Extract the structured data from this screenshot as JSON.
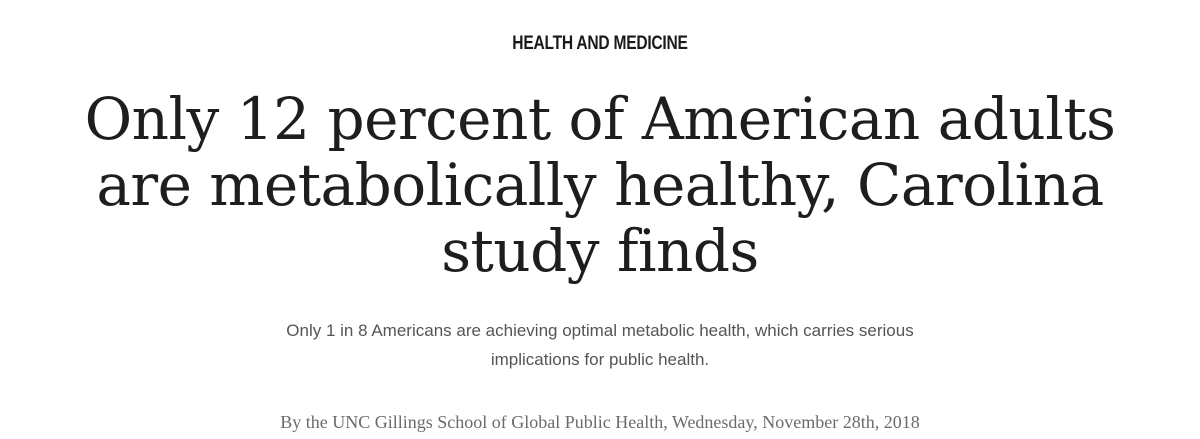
{
  "article": {
    "category": "HEALTH AND MEDICINE",
    "headline": "Only 12 percent of American adults are metabolically healthy, Carolina study finds",
    "subhead": "Only 1 in 8 Americans are achieving optimal metabolic health, which carries serious implications for public health.",
    "byline": "By the UNC Gillings School of Global Public Health, Wednesday, November 28th, 2018"
  },
  "colors": {
    "background": "#ffffff",
    "headline": "#1e1e1e",
    "subhead": "#555555",
    "byline": "#6b6b6b"
  }
}
